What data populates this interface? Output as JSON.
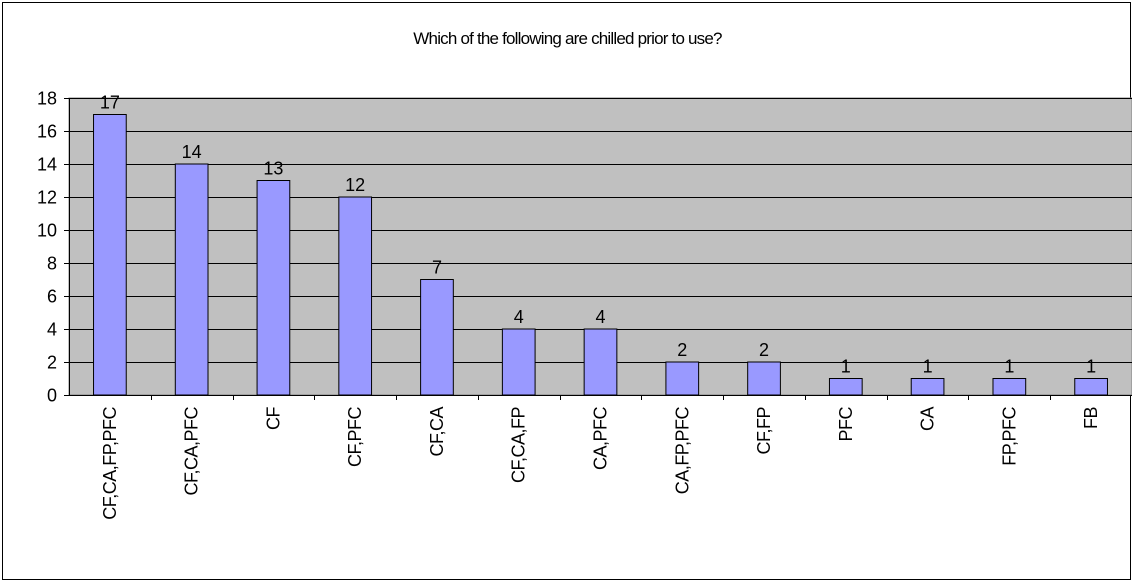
{
  "chart_data": {
    "type": "bar",
    "title": "Which of the following are chilled prior to use?",
    "xlabel": "",
    "ylabel": "",
    "ylim": [
      0,
      18
    ],
    "yticks": [
      0,
      2,
      4,
      6,
      8,
      10,
      12,
      14,
      16,
      18
    ],
    "grid": true,
    "legend": "none",
    "categories": [
      "CF,CA,FP,PFC",
      "CF,CA,PFC",
      "CF",
      "CF,PFC",
      "CF,CA",
      "CF,CA,FP",
      "CA,PFC",
      "CA,FP,PFC",
      "CF,FP",
      "PFC",
      "CA",
      "FP,PFC",
      "FB"
    ],
    "values": [
      17,
      14,
      13,
      12,
      7,
      4,
      4,
      2,
      2,
      1,
      1,
      1,
      1
    ],
    "colors": {
      "plot_background": "#c0c0c0",
      "bar_fill": "#9999ff",
      "bar_stroke": "#000000",
      "gridline": "#000000"
    }
  }
}
